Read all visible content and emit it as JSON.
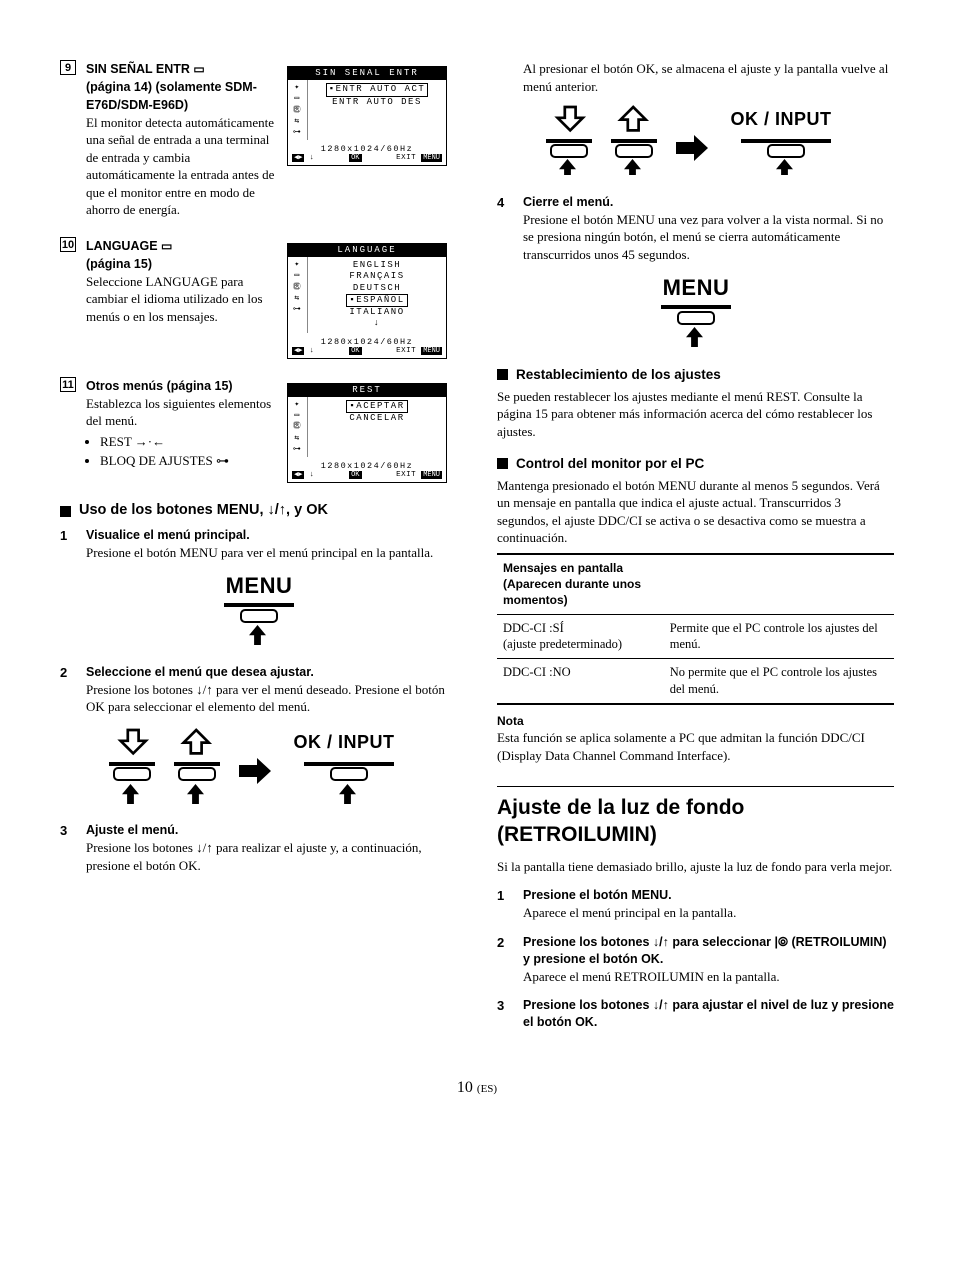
{
  "leftItems": [
    {
      "num": "9",
      "title": "SIN SEÑAL ENTR",
      "titleIcon": "input-icon",
      "subtitle": "(página 14) (solamente SDM-E76D/SDM-E96D)",
      "body": "El monitor detecta automáticamente una señal de entrada a una terminal de entrada y cambia automáticamente la entrada antes de que el monitor entre en modo de ahorro de energía.",
      "osd": {
        "title": "SIN SENAL ENTR",
        "lines": [
          "ENTR AUTO ACT",
          "ENTR AUTO DES"
        ],
        "selectedIndex": 0,
        "resolution": "1280x1024/60Hz"
      }
    },
    {
      "num": "10",
      "title": "LANGUAGE",
      "titleIcon": "language-icon",
      "subtitle": "(página 15)",
      "body": "Seleccione LANGUAGE para cambiar el idioma utilizado en los menús o en los mensajes.",
      "osd": {
        "title": "LANGUAGE",
        "lines": [
          "ENGLISH",
          "FRANÇAIS",
          "DEUTSCH",
          "ESPAÑOL",
          "ITALIANO"
        ],
        "selectedIndex": 3,
        "resolution": "1280x1024/60Hz"
      }
    },
    {
      "num": "11",
      "title": "Otros menús (página 15)",
      "body": "Establezca los siguientes elementos del menú.",
      "bullets": [
        "REST →·←",
        "BLOQ DE AJUSTES"
      ],
      "bulletIcons": [
        "",
        "lock-icon"
      ],
      "osd": {
        "title": "REST",
        "lines": [
          "ACEPTAR",
          "CANCELAR"
        ],
        "selectedIndex": 0,
        "resolution": "1280x1024/60Hz"
      }
    }
  ],
  "usoHeading": "Uso de los botones MENU, ↓/↑, y OK",
  "steps": [
    {
      "num": "1",
      "title": "Visualice el menú principal.",
      "desc": "Presione el botón MENU para ver el menú principal en la pantalla.",
      "diagram": "menu-single"
    },
    {
      "num": "2",
      "title": "Seleccione el menú que desea ajustar.",
      "desc": "Presione los botones ↓/↑ para ver el menú deseado. Presione el botón OK para seleccionar el elemento del menú.",
      "diagram": "down-up-ok"
    },
    {
      "num": "3",
      "title": "Ajuste el menú.",
      "desc": "Presione los botones ↓/↑ para realizar el ajuste y, a continuación, presione el botón OK."
    }
  ],
  "rightIntro": "Al presionar el botón OK, se almacena el ajuste y la pantalla vuelve al menú anterior.",
  "rightStep4": {
    "num": "4",
    "title": "Cierre el menú.",
    "desc": "Presione el botón MENU una vez para volver a la vista normal. Si no se presiona ningún botón, el menú se cierra automáticamente transcurridos unos 45 segundos."
  },
  "restablecimiento": {
    "heading": "Restablecimiento de los ajustes",
    "body": "Se pueden restablecer los ajustes mediante el menú REST. Consulte la página 15 para obtener más información acerca del cómo restablecer los ajustes."
  },
  "controlPC": {
    "heading": "Control del monitor por el PC",
    "body": "Mantenga presionado el botón MENU durante al menos 5 segundos. Verá un mensaje en pantalla que indica el ajuste actual. Transcurridos 3 segundos, el ajuste DDC/CI se activa o se desactiva como se muestra a continuación."
  },
  "table": {
    "header": "Mensajes en pantalla (Aparecen durante unos momentos)",
    "rows": [
      {
        "l1": "DDC-CI :SÍ",
        "l2": "(ajuste predeterminado)",
        "r": "Permite que el PC controle los ajustes del menú."
      },
      {
        "l1": "DDC-CI :NO",
        "l2": "",
        "r": "No permite que el PC controle los ajustes del menú."
      }
    ]
  },
  "nota": {
    "label": "Nota",
    "body": "Esta función se aplica solamente a PC que admitan la función DDC/CI (Display Data Channel Command Interface)."
  },
  "retro": {
    "heading": "Ajuste de la luz de fondo (RETROILUMIN)",
    "intro": "Si la pantalla tiene demasiado brillo, ajuste la luz de fondo para verla mejor.",
    "steps": [
      {
        "num": "1",
        "title": "Presione el botón MENU.",
        "desc": "Aparece el menú principal en la pantalla."
      },
      {
        "num": "2",
        "title": "Presione los botones ↓/↑ para seleccionar |⦾ (RETROILUMIN) y presione el botón OK.",
        "desc": "Aparece el menú RETROILUMIN en la pantalla."
      },
      {
        "num": "3",
        "title": "Presione los botones ↓/↑ para ajustar el nivel de luz y presione el botón OK.",
        "desc": ""
      }
    ]
  },
  "pageNumber": "10",
  "pageLang": "(ES)"
}
